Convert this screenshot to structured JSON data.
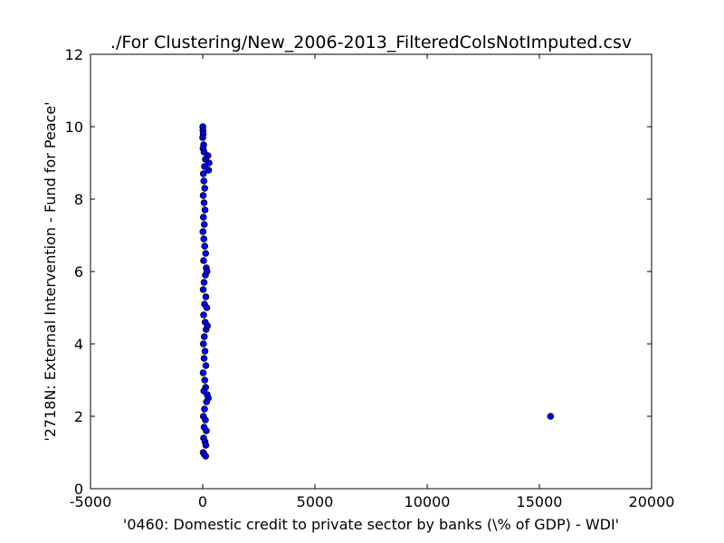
{
  "chart_data": {
    "type": "scatter",
    "title": "./For Clustering/New_2006-2013_FilteredColsNotImputed.csv",
    "xlabel": "'0460: Domestic credit to private sector by banks  (\\% of GDP) - WDI'",
    "ylabel": "'2718N: External Intervention - Fund for Peace'",
    "xlim": [
      -5000,
      20000
    ],
    "ylim": [
      0,
      12
    ],
    "x_ticks": [
      -5000,
      0,
      5000,
      10000,
      15000,
      20000
    ],
    "y_ticks": [
      0,
      2,
      4,
      6,
      8,
      10,
      12
    ],
    "grid": false,
    "marker_color": "#0000ff",
    "marker_edge_color": "#000000",
    "series": [
      {
        "points": [
          [
            5,
            10.0
          ],
          [
            10,
            9.9
          ],
          [
            20,
            9.8
          ],
          [
            0,
            9.7
          ],
          [
            40,
            9.5
          ],
          [
            15,
            9.4
          ],
          [
            60,
            9.3
          ],
          [
            230,
            9.2
          ],
          [
            120,
            9.1
          ],
          [
            280,
            9.0
          ],
          [
            80,
            8.9
          ],
          [
            260,
            8.8
          ],
          [
            30,
            8.7
          ],
          [
            50,
            8.5
          ],
          [
            90,
            8.3
          ],
          [
            20,
            8.1
          ],
          [
            60,
            7.9
          ],
          [
            100,
            7.7
          ],
          [
            30,
            7.5
          ],
          [
            70,
            7.3
          ],
          [
            10,
            7.1
          ],
          [
            50,
            6.9
          ],
          [
            90,
            6.7
          ],
          [
            130,
            6.5
          ],
          [
            40,
            6.3
          ],
          [
            160,
            6.1
          ],
          [
            120,
            5.9
          ],
          [
            60,
            5.7
          ],
          [
            20,
            5.5
          ],
          [
            140,
            5.3
          ],
          [
            80,
            5.1
          ],
          [
            180,
            5.0
          ],
          [
            40,
            4.8
          ],
          [
            110,
            4.6
          ],
          [
            150,
            4.4
          ],
          [
            70,
            4.2
          ],
          [
            30,
            4.0
          ],
          [
            100,
            3.8
          ],
          [
            60,
            3.6
          ],
          [
            140,
            3.4
          ],
          [
            20,
            3.2
          ],
          [
            90,
            3.0
          ],
          [
            130,
            2.8
          ],
          [
            50,
            2.7
          ],
          [
            250,
            2.5
          ],
          [
            170,
            2.4
          ],
          [
            80,
            2.2
          ],
          [
            30,
            2.0
          ],
          [
            120,
            1.9
          ],
          [
            60,
            1.7
          ],
          [
            160,
            1.6
          ],
          [
            40,
            1.4
          ],
          [
            100,
            1.3
          ],
          [
            140,
            1.2
          ],
          [
            20,
            1.0
          ],
          [
            70,
            0.95
          ],
          [
            130,
            0.9
          ],
          [
            200,
            2.6
          ],
          [
            190,
            6.0
          ],
          [
            210,
            4.5
          ],
          [
            15500,
            2.0
          ]
        ]
      }
    ]
  }
}
